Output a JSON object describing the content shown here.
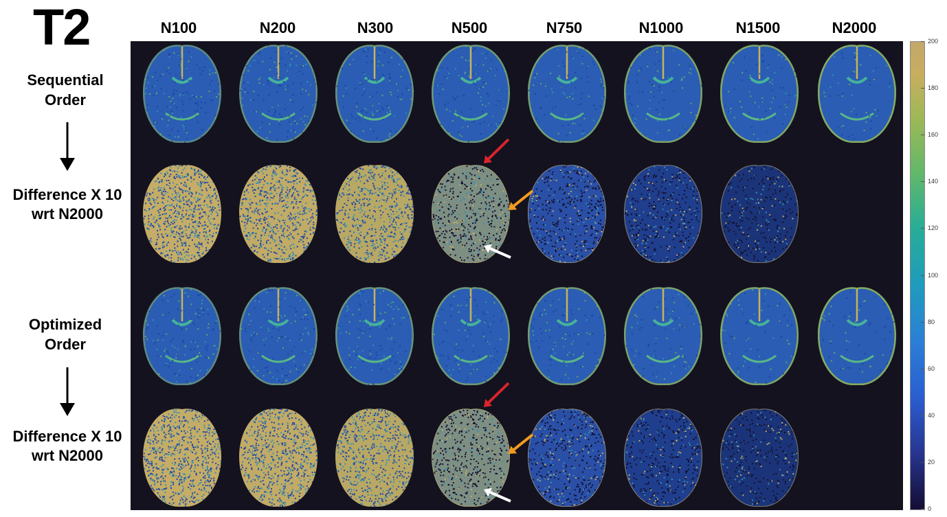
{
  "title": "T2",
  "columns": [
    "N100",
    "N200",
    "N300",
    "N500",
    "N750",
    "N1000",
    "N1500",
    "N2000"
  ],
  "row_labels": {
    "sequential": "Sequential Order",
    "difference_1_line1": "Difference X 10",
    "difference_1_line2": "wrt N2000",
    "optimized": "Optimized Order",
    "difference_2_line1": "Difference X 10",
    "difference_2_line2": "wrt N2000"
  },
  "colorbar": {
    "ticks": [
      "200",
      "180",
      "160",
      "140",
      "120",
      "100",
      "80",
      "60",
      "40",
      "20",
      "0"
    ],
    "range": [
      0,
      200
    ],
    "colormap": "parula"
  },
  "annotation_colors": {
    "red": "#d9252b",
    "orange": "#f39a1f",
    "white": "#ffffff"
  }
}
